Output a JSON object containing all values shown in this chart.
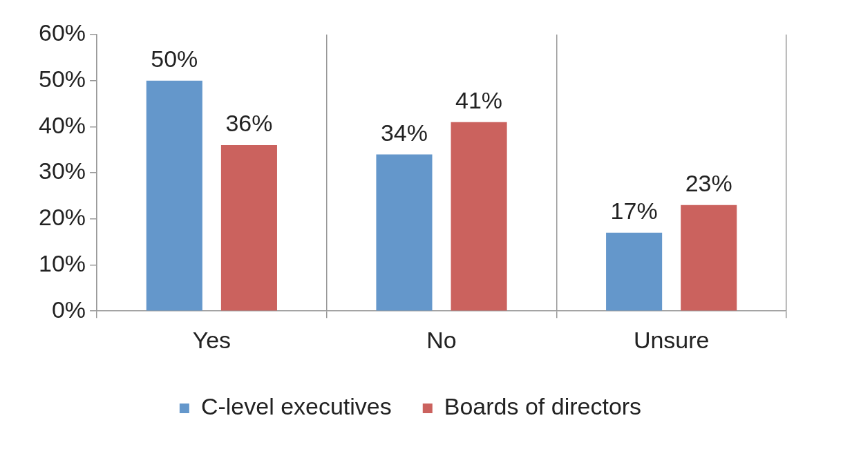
{
  "chart_data": {
    "type": "bar",
    "categories": [
      "Yes",
      "No",
      "Unsure"
    ],
    "series": [
      {
        "name": "C-level executives",
        "color": "#6497cb",
        "values": [
          50,
          34,
          17
        ],
        "value_labels": [
          "50%",
          "34%",
          "17%"
        ]
      },
      {
        "name": "Boards of directors",
        "color": "#cb625e",
        "values": [
          36,
          41,
          23
        ],
        "value_labels": [
          "36%",
          "41%",
          "23%"
        ]
      }
    ],
    "ylim": [
      0,
      60
    ],
    "yticks": [
      {
        "value": 0,
        "label": "0%"
      },
      {
        "value": 10,
        "label": "10%"
      },
      {
        "value": 20,
        "label": "20%"
      },
      {
        "value": 30,
        "label": "30%"
      },
      {
        "value": 40,
        "label": "40%"
      },
      {
        "value": 50,
        "label": "50%"
      },
      {
        "value": 60,
        "label": "60%"
      }
    ],
    "grid": "x",
    "legend": "bottom"
  }
}
